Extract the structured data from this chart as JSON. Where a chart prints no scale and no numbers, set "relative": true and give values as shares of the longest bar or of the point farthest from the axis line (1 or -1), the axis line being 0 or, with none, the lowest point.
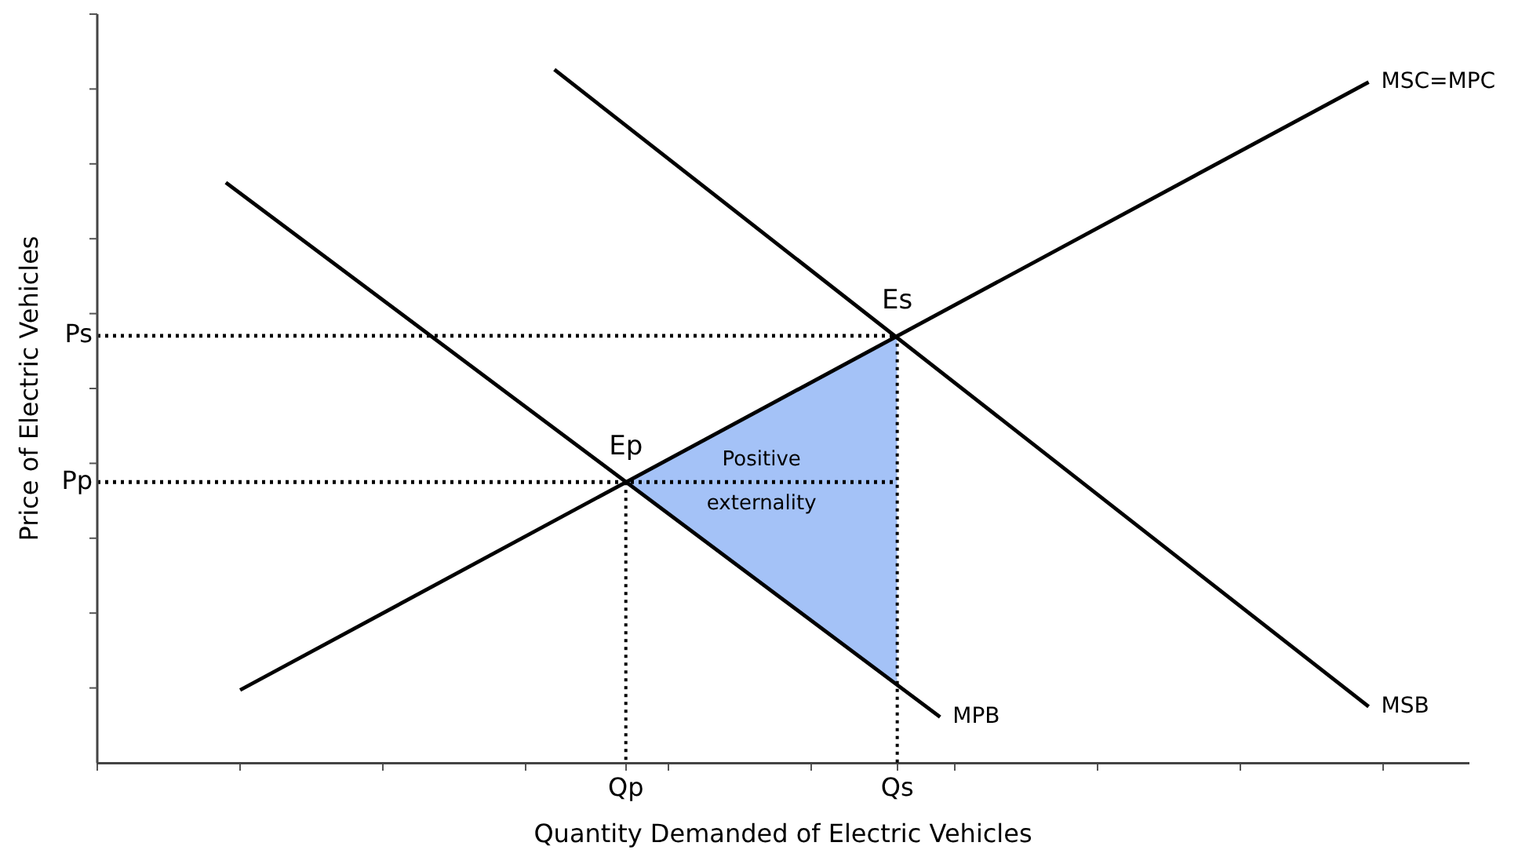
{
  "chart_data": {
    "type": "line",
    "relative": true,
    "xlabel": "Quantity Demanded of Electric Vehicles",
    "ylabel": "Price of Electric Vehicles",
    "marker": "none",
    "categories": [
      null,
      null,
      null,
      null,
      null,
      null,
      null,
      null,
      null,
      null,
      null,
      null,
      null,
      null,
      null,
      null,
      null,
      null,
      null,
      null,
      null,
      null,
      null,
      null,
      null,
      null,
      null,
      null,
      null,
      null,
      null,
      null,
      null,
      null,
      null,
      null,
      null,
      "Qp",
      null,
      null,
      null,
      null,
      null,
      null,
      null,
      null,
      null,
      null,
      null,
      null,
      null,
      null,
      null,
      null,
      null,
      null,
      "Qs",
      null,
      null,
      null,
      null,
      null,
      null,
      null,
      null,
      null,
      null,
      null,
      null,
      null,
      null,
      null,
      null,
      null,
      null,
      null,
      null,
      null,
      null,
      null,
      null,
      null,
      null,
      null,
      null,
      null,
      null,
      null,
      null,
      null,
      null,
      null,
      null,
      null,
      null,
      null,
      null
    ],
    "series": [
      {
        "type": "area",
        "color": "#a4c2f7",
        "values": [
          null,
          null,
          null,
          null,
          null,
          null,
          null,
          null,
          null,
          null,
          null,
          null,
          null,
          null,
          null,
          null,
          null,
          null,
          null,
          null,
          null,
          null,
          null,
          null,
          null,
          null,
          null,
          null,
          null,
          null,
          null,
          null,
          null,
          null,
          null,
          null,
          null,
          0.405,
          null,
          null,
          null,
          null,
          null,
          null,
          null,
          null,
          null,
          null,
          null,
          null,
          null,
          null,
          null,
          null,
          null,
          null,
          0.616,
          null,
          null,
          null,
          null,
          null,
          null,
          null,
          null,
          null,
          null,
          null,
          null,
          null,
          null,
          null,
          null,
          null,
          null,
          null,
          null,
          null,
          null,
          null,
          null,
          null,
          null,
          null,
          null,
          null,
          null,
          null,
          null,
          null,
          null,
          null,
          null,
          null,
          null,
          null,
          null
        ]
      },
      {
        "name": "Ps",
        "color": "#000000",
        "line_style": "dotted",
        "values": [
          0.616,
          null,
          null,
          null,
          null,
          null,
          null,
          null,
          null,
          null,
          null,
          null,
          null,
          null,
          null,
          null,
          null,
          null,
          null,
          null,
          null,
          null,
          null,
          null,
          null,
          null,
          null,
          null,
          null,
          null,
          null,
          null,
          null,
          null,
          null,
          null,
          null,
          null,
          null,
          null,
          null,
          null,
          null,
          null,
          null,
          null,
          null,
          null,
          null,
          null,
          null,
          null,
          null,
          null,
          null,
          null,
          0.616,
          null,
          null,
          null,
          null,
          null,
          null,
          null,
          null,
          null,
          null,
          null,
          null,
          null,
          null,
          null,
          null,
          null,
          null,
          null,
          null,
          null,
          null,
          null,
          null,
          null,
          null,
          null,
          null,
          null,
          null,
          null,
          null,
          null,
          null,
          null,
          null,
          null,
          null,
          null,
          null
        ]
      },
      {
        "name": "Pp",
        "color": "#000000",
        "line_style": "dotted",
        "values": [
          0.405,
          null,
          null,
          null,
          null,
          null,
          null,
          null,
          null,
          null,
          null,
          null,
          null,
          null,
          null,
          null,
          null,
          null,
          null,
          null,
          null,
          null,
          null,
          null,
          null,
          null,
          null,
          null,
          null,
          null,
          null,
          null,
          null,
          null,
          null,
          null,
          null,
          null,
          null,
          null,
          null,
          null,
          null,
          null,
          null,
          null,
          null,
          null,
          null,
          null,
          null,
          null,
          null,
          null,
          null,
          null,
          0.405,
          null,
          null,
          null,
          null,
          null,
          null,
          null,
          null,
          null,
          null,
          null,
          null,
          null,
          null,
          null,
          null,
          null,
          null,
          null,
          null,
          null,
          null,
          null,
          null,
          null,
          null,
          null,
          null,
          null,
          null,
          null,
          null,
          null,
          null,
          null,
          null,
          null,
          null,
          null,
          null
        ]
      },
      {
        "name": "MSC=MPC",
        "color": "#000000",
        "line_style": "solid",
        "values": [
          null,
          null,
          null,
          null,
          null,
          null,
          null,
          null,
          null,
          null,
          0.105,
          null,
          null,
          null,
          null,
          null,
          null,
          null,
          null,
          null,
          null,
          null,
          null,
          null,
          null,
          null,
          null,
          null,
          null,
          null,
          null,
          null,
          null,
          null,
          null,
          null,
          null,
          null,
          null,
          null,
          null,
          null,
          null,
          null,
          null,
          null,
          null,
          null,
          null,
          null,
          null,
          null,
          null,
          null,
          null,
          null,
          null,
          null,
          null,
          null,
          null,
          null,
          null,
          null,
          null,
          null,
          null,
          null,
          null,
          null,
          null,
          null,
          null,
          null,
          null,
          null,
          null,
          null,
          null,
          null,
          null,
          null,
          null,
          null,
          null,
          null,
          null,
          null,
          null,
          0.982,
          null,
          null,
          null,
          null,
          null,
          null,
          null
        ]
      },
      {
        "name": "MPB",
        "color": "#000000",
        "line_style": "solid",
        "values": [
          null,
          null,
          null,
          null,
          null,
          null,
          null,
          null,
          null,
          0.837,
          null,
          null,
          null,
          null,
          null,
          null,
          null,
          null,
          null,
          null,
          null,
          null,
          null,
          null,
          null,
          null,
          null,
          null,
          null,
          null,
          null,
          null,
          null,
          null,
          null,
          null,
          null,
          null,
          null,
          null,
          null,
          null,
          null,
          null,
          null,
          null,
          null,
          null,
          null,
          null,
          null,
          null,
          null,
          null,
          null,
          null,
          null,
          null,
          null,
          0.066,
          null,
          null,
          null,
          null,
          null,
          null,
          null,
          null,
          null,
          null,
          null,
          null,
          null,
          null,
          null,
          null,
          null,
          null,
          null,
          null,
          null,
          null,
          null,
          null,
          null,
          null,
          null,
          null,
          null,
          null,
          null,
          null,
          null,
          null,
          null,
          null,
          null
        ]
      },
      {
        "name": "MSB",
        "color": "#000000",
        "line_style": "solid",
        "values": [
          null,
          null,
          null,
          null,
          null,
          null,
          null,
          null,
          null,
          null,
          null,
          null,
          null,
          null,
          null,
          null,
          null,
          null,
          null,
          null,
          null,
          null,
          null,
          null,
          null,
          null,
          null,
          null,
          null,
          null,
          null,
          null,
          1,
          null,
          null,
          null,
          null,
          null,
          null,
          null,
          null,
          null,
          null,
          null,
          null,
          null,
          null,
          null,
          null,
          null,
          null,
          null,
          null,
          null,
          null,
          null,
          null,
          null,
          null,
          null,
          null,
          null,
          null,
          null,
          null,
          null,
          null,
          null,
          null,
          null,
          null,
          null,
          null,
          null,
          null,
          null,
          null,
          null,
          null,
          null,
          null,
          null,
          null,
          null,
          null,
          null,
          null,
          null,
          null,
          0.081,
          null,
          null,
          null,
          null,
          null,
          null,
          null
        ]
      }
    ],
    "annotations": [
      {
        "text": "Ep",
        "x": "Qp",
        "y": 0.405
      },
      {
        "text": "Es",
        "x": "Qs",
        "y": 0.616
      },
      "Positive externality"
    ]
  }
}
